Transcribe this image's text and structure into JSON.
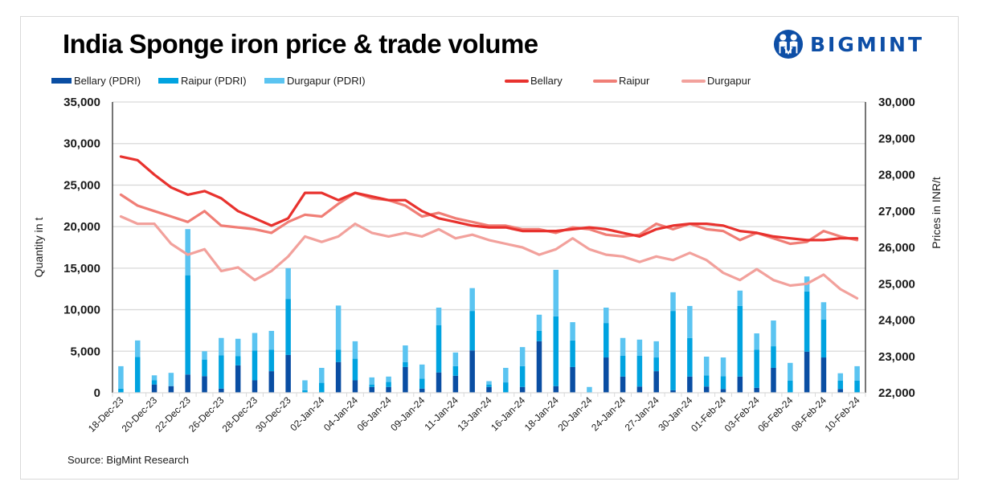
{
  "header": {
    "title": "India Sponge iron price & trade volume",
    "brand": "BIGMINT",
    "brand_color": "#0d4ea6"
  },
  "source": "Source: BigMint Research",
  "legend": [
    {
      "label": "Bellary (PDRI)",
      "kind": "bar",
      "color": "#0a4ea3"
    },
    {
      "label": "Raipur (PDRI)",
      "kind": "bar",
      "color": "#00a3e0"
    },
    {
      "label": "Durgapur (PDRI)",
      "kind": "bar",
      "color": "#5bc4f1"
    },
    {
      "label": "Bellary",
      "kind": "line",
      "color": "#e8322e"
    },
    {
      "label": "Raipur",
      "kind": "line",
      "color": "#f07e76"
    },
    {
      "label": "Durgapur",
      "kind": "line",
      "color": "#f2a19c"
    }
  ],
  "chart_data": {
    "type": "bar+line",
    "title": "India Sponge iron price & trade volume",
    "xlabel": "",
    "ylabel": "Quantity in t",
    "y2label": "Prices in INR/t",
    "ylim": [
      0,
      35000
    ],
    "y2lim": [
      22000,
      30000
    ],
    "yticks": [
      "0",
      "5,000",
      "10,000",
      "15,000",
      "20,000",
      "25,000",
      "30,000",
      "35,000"
    ],
    "y2ticks": [
      "22,000",
      "23,000",
      "24,000",
      "25,000",
      "26,000",
      "27,000",
      "28,000",
      "29,000",
      "30,000"
    ],
    "grid": true,
    "legend_position": "top",
    "category_count": 45,
    "x_tick_labels": [
      "18-Dec-23",
      "20-Dec-23",
      "22-Dec-23",
      "26-Dec-23",
      "28-Dec-23",
      "30-Dec-23",
      "02-Jan-24",
      "04-Jan-24",
      "06-Jan-24",
      "09-Jan-24",
      "11-Jan-24",
      "13-Jan-24",
      "16-Jan-24",
      "18-Jan-24",
      "20-Jan-24",
      "24-Jan-24",
      "27-Jan-24",
      "30-Jan-24",
      "01-Feb-24",
      "03-Feb-24",
      "06-Feb-24",
      "08-Feb-24",
      "10-Feb-24"
    ],
    "x_tick_every": 2,
    "bar_series": [
      {
        "name": "Bellary (PDRI)",
        "color": "#0a4ea3",
        "stacked": true,
        "axis": "left",
        "values": [
          0,
          0,
          1000,
          800,
          2200,
          2000,
          500,
          3300,
          1500,
          2600,
          4550,
          0,
          0,
          3700,
          1500,
          700,
          700,
          3100,
          500,
          2450,
          2050,
          5100,
          700,
          0,
          700,
          6200,
          800,
          3100,
          0,
          4250,
          1950,
          750,
          2600,
          300,
          1950,
          750,
          450,
          1950,
          600,
          3000,
          0,
          4950,
          4250,
          450,
          0
        ]
      },
      {
        "name": "Raipur (PDRI)",
        "color": "#00a3e0",
        "stacked": true,
        "axis": "left",
        "values": [
          500,
          4300,
          500,
          0,
          11950,
          2000,
          4000,
          1100,
          3600,
          2600,
          6750,
          300,
          1200,
          1500,
          2600,
          300,
          600,
          600,
          1200,
          5700,
          1150,
          4750,
          300,
          1250,
          2500,
          1250,
          8400,
          3200,
          0,
          4150,
          2500,
          3700,
          1650,
          9550,
          4650,
          1350,
          1550,
          8500,
          4600,
          2600,
          1450,
          7250,
          4550,
          1000,
          1450
        ]
      },
      {
        "name": "Durgapur (PDRI)",
        "color": "#5bc4f1",
        "stacked": true,
        "axis": "left",
        "values": [
          2700,
          2000,
          600,
          1600,
          5550,
          1000,
          2100,
          2100,
          2100,
          2250,
          3700,
          1200,
          1800,
          5300,
          2100,
          850,
          650,
          2000,
          1700,
          2100,
          1650,
          2750,
          400,
          1750,
          2300,
          1950,
          5600,
          2200,
          700,
          1850,
          2150,
          1950,
          1950,
          2250,
          3850,
          2250,
          2250,
          1850,
          1950,
          3100,
          2150,
          1800,
          2100,
          900,
          1750
        ]
      }
    ],
    "line_series": [
      {
        "name": "Bellary",
        "color": "#e8322e",
        "axis": "right",
        "values": [
          28500,
          28400,
          28000,
          27650,
          27450,
          27550,
          27350,
          27000,
          26800,
          26600,
          26800,
          27500,
          27500,
          27300,
          27500,
          27400,
          27300,
          27300,
          27000,
          26800,
          26700,
          26600,
          26550,
          26550,
          26450,
          26450,
          26450,
          26500,
          26550,
          26500,
          26400,
          26300,
          26500,
          26600,
          26650,
          26650,
          26600,
          26450,
          26400,
          26300,
          26250,
          26200,
          26200,
          26250,
          26250
        ]
      },
      {
        "name": "Raipur",
        "color": "#f07e76",
        "axis": "right",
        "values": [
          27450,
          27150,
          27000,
          26850,
          26700,
          27000,
          26600,
          26550,
          26500,
          26400,
          26700,
          26900,
          26850,
          27200,
          27500,
          27350,
          27300,
          27150,
          26850,
          26950,
          26800,
          26700,
          26600,
          26600,
          26500,
          26500,
          26400,
          26550,
          26500,
          26350,
          26300,
          26350,
          26650,
          26500,
          26650,
          26500,
          26450,
          26200,
          26400,
          26250,
          26100,
          26150,
          26450,
          26300,
          26200
        ]
      },
      {
        "name": "Durgapur",
        "color": "#f2a19c",
        "axis": "right",
        "values": [
          26850,
          26650,
          26650,
          26100,
          25800,
          25950,
          25350,
          25450,
          25100,
          25350,
          25750,
          26300,
          26150,
          26300,
          26650,
          26400,
          26300,
          26400,
          26300,
          26500,
          26250,
          26350,
          26200,
          26100,
          26000,
          25800,
          25950,
          26250,
          25950,
          25800,
          25750,
          25600,
          25750,
          25650,
          25850,
          25650,
          25300,
          25100,
          25400,
          25100,
          24950,
          25000,
          25250,
          24850,
          24600
        ]
      }
    ]
  }
}
